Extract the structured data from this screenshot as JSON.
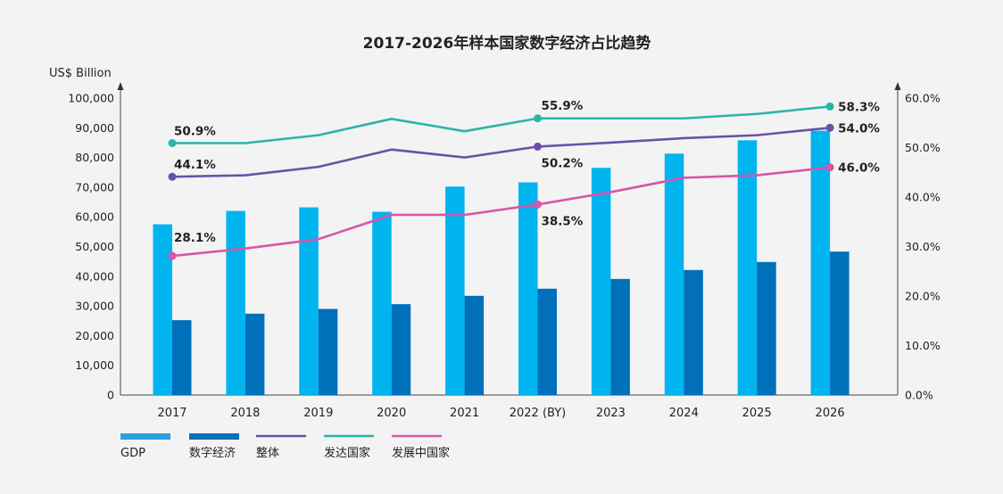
{
  "chart_data": {
    "type": "bar",
    "title": "2017-2026年样本国家数字经济占比趋势",
    "ylabel": "US$ Billion",
    "ylim": [
      0,
      100000
    ],
    "y_ticks": [
      "0",
      "10,000",
      "20,000",
      "30,000",
      "40,000",
      "50,000",
      "60,000",
      "70,000",
      "80,000",
      "90,000",
      "100,000"
    ],
    "y2lim": [
      0,
      60
    ],
    "y2_ticks": [
      "0.0%",
      "10.0%",
      "20.0%",
      "30.0%",
      "40.0%",
      "50.0%",
      "60.0%"
    ],
    "categories": [
      "2017",
      "2018",
      "2019",
      "2020",
      "2021",
      "2022 (BY)",
      "2023",
      "2024",
      "2025",
      "2026"
    ],
    "bar_series": [
      {
        "name": "GDP",
        "color": "#00b4ef",
        "legend_color": "#2e9fe0",
        "values": [
          57500,
          62000,
          63200,
          61700,
          70200,
          71600,
          76500,
          81300,
          85800,
          89000
        ]
      },
      {
        "name": "数字经济",
        "color": "#0070bb",
        "legend_color": "#0070bb",
        "values": [
          25200,
          27400,
          29000,
          30600,
          33400,
          35800,
          39100,
          42100,
          44800,
          48300
        ]
      }
    ],
    "line_series": [
      {
        "name": "整体",
        "color": "#6a50a7",
        "values": [
          44.1,
          44.4,
          46.1,
          49.6,
          48.0,
          50.2,
          51.0,
          51.9,
          52.5,
          54.0
        ]
      },
      {
        "name": "发达国家",
        "color": "#2bb5a6",
        "values": [
          50.9,
          50.9,
          52.5,
          55.8,
          53.3,
          55.9,
          55.9,
          55.9,
          56.8,
          58.3
        ]
      },
      {
        "name": "发展中国家",
        "color": "#d756a9",
        "values": [
          28.1,
          29.6,
          31.5,
          36.4,
          36.4,
          38.5,
          41.0,
          43.9,
          44.4,
          46.0
        ]
      }
    ],
    "markers": [
      {
        "series": 0,
        "index": 0
      },
      {
        "series": 0,
        "index": 5
      },
      {
        "series": 0,
        "index": 9
      },
      {
        "series": 1,
        "index": 0
      },
      {
        "series": 1,
        "index": 5
      },
      {
        "series": 1,
        "index": 9
      },
      {
        "series": 2,
        "index": 0
      },
      {
        "series": 2,
        "index": 5
      },
      {
        "series": 2,
        "index": 9
      }
    ],
    "data_labels": [
      {
        "text": "50.9%",
        "series": 1,
        "index": 0
      },
      {
        "text": "44.1%",
        "series": 0,
        "index": 0
      },
      {
        "text": "28.1%",
        "series": 2,
        "index": 0
      },
      {
        "text": "55.9%",
        "series": 1,
        "index": 5
      },
      {
        "text": "50.2%",
        "series": 0,
        "index": 5
      },
      {
        "text": "38.5%",
        "series": 2,
        "index": 5
      },
      {
        "text": "58.3%",
        "series": 1,
        "index": 9
      },
      {
        "text": "54.0%",
        "series": 0,
        "index": 9
      },
      {
        "text": "46.0%",
        "series": 2,
        "index": 9
      }
    ],
    "legend": [
      {
        "label": "GDP",
        "kind": "bar",
        "color": "#2e9fe0"
      },
      {
        "label": "数字经济",
        "kind": "bar",
        "color": "#0070bb"
      },
      {
        "label": "整体",
        "kind": "line",
        "color": "#6a50a7"
      },
      {
        "label": "发达国家",
        "kind": "line",
        "color": "#2bb5a6"
      },
      {
        "label": "发展中国家",
        "kind": "line",
        "color": "#d756a9"
      }
    ],
    "legend_position": "bottom-left",
    "grid": false
  }
}
